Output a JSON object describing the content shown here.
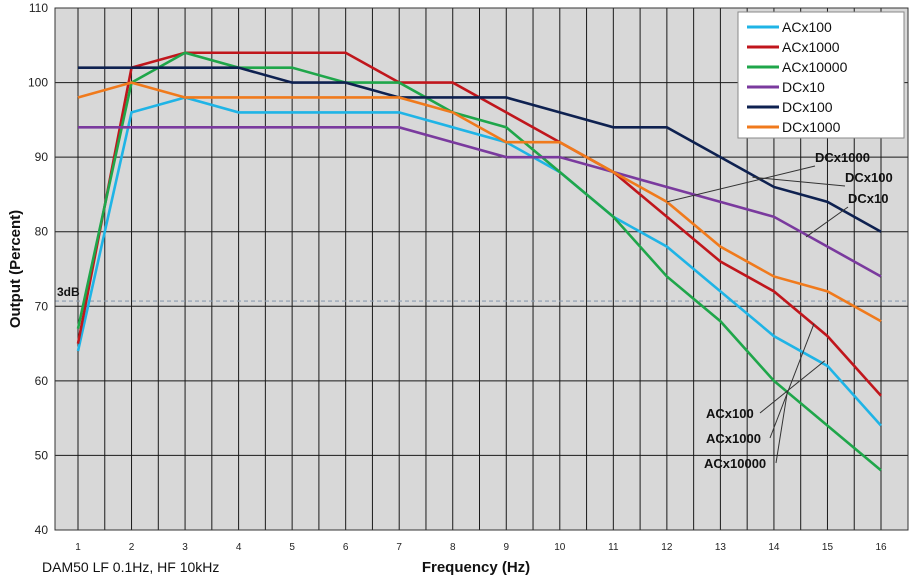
{
  "chart_data": {
    "type": "line",
    "title": "",
    "xlabel": "Frequency (Hz)",
    "ylabel": "Output (Percent)",
    "note": "DAM50 LF 0.1Hz, HF 10kHz",
    "x": [
      1,
      2,
      3,
      4,
      5,
      6,
      7,
      8,
      9,
      10,
      11,
      12,
      13,
      14,
      15,
      16
    ],
    "xlim": [
      1,
      16
    ],
    "ylim": [
      40,
      110
    ],
    "yticks": [
      40,
      50,
      60,
      70,
      80,
      90,
      100,
      110
    ],
    "grid": true,
    "legend_position": "top-right",
    "reference_line": {
      "label": "3dB",
      "value": 70.7,
      "color": "#8a9bb0"
    },
    "series": [
      {
        "name": "ACx100",
        "color": "#1fb4e6",
        "values": [
          64,
          96,
          98,
          96,
          96,
          96,
          96,
          94,
          92,
          88,
          82,
          78,
          72,
          66,
          62,
          54
        ]
      },
      {
        "name": "ACx1000",
        "color": "#c0161c",
        "values": [
          65,
          102,
          104,
          104,
          104,
          104,
          100,
          100,
          96,
          92,
          88,
          82,
          76,
          72,
          66,
          58
        ]
      },
      {
        "name": "ACx10000",
        "color": "#1fa64a",
        "values": [
          67,
          100,
          104,
          102,
          102,
          100,
          100,
          96,
          94,
          88,
          82,
          74,
          68,
          60,
          54,
          48
        ]
      },
      {
        "name": "DCx10",
        "color": "#7a3a9e",
        "values": [
          94,
          94,
          94,
          94,
          94,
          94,
          94,
          92,
          90,
          90,
          88,
          86,
          84,
          82,
          78,
          74
        ]
      },
      {
        "name": "DCx100",
        "color": "#0e2150",
        "values": [
          102,
          102,
          102,
          102,
          100,
          100,
          98,
          98,
          98,
          96,
          94,
          94,
          90,
          86,
          84,
          80
        ]
      },
      {
        "name": "DCx1000",
        "color": "#f07a1c",
        "values": [
          98,
          100,
          98,
          98,
          98,
          98,
          98,
          96,
          92,
          92,
          88,
          84,
          78,
          74,
          72,
          68
        ]
      }
    ],
    "annotations": [
      {
        "text": "DCx1000",
        "series": "DCx1000",
        "x": 12,
        "y": 84
      },
      {
        "text": "DCx100",
        "series": "DCx100",
        "x": 13.6,
        "y": 87.3
      },
      {
        "text": "DCx10",
        "series": "DCx10",
        "x": 14.6,
        "y": 79.3
      },
      {
        "text": "ACx100",
        "series": "ACx100",
        "x": 14.95,
        "y": 62.7
      },
      {
        "text": "ACx1000",
        "series": "ACx1000",
        "x": 14.75,
        "y": 67.7
      },
      {
        "text": "ACx10000",
        "series": "ACx10000",
        "x": 14.25,
        "y": 58.5
      }
    ]
  }
}
